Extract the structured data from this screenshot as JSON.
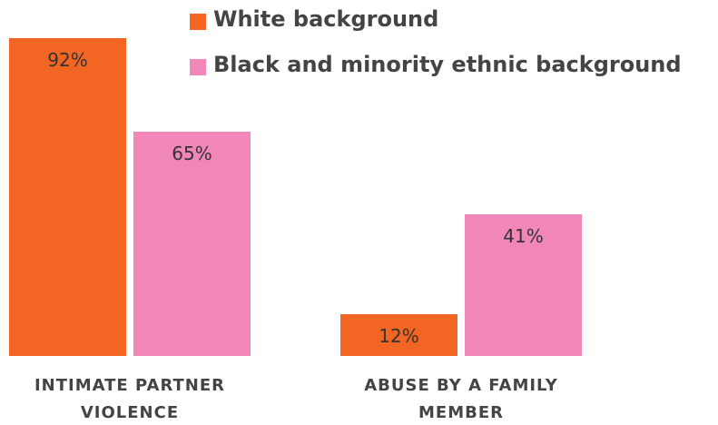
{
  "chart_data": {
    "type": "bar",
    "categories": [
      "INTIMATE PARTNER VIOLENCE",
      "ABUSE BY A FAMILY MEMBER"
    ],
    "series": [
      {
        "name": "White background",
        "color": "#f26522",
        "values": [
          92,
          12
        ],
        "value_labels": [
          "92%",
          "12%"
        ]
      },
      {
        "name": "Black and minority ethnic background",
        "color": "#f087b8",
        "values": [
          65,
          41
        ],
        "value_labels": [
          "65%",
          "41%"
        ]
      }
    ],
    "legend": "top-right"
  }
}
